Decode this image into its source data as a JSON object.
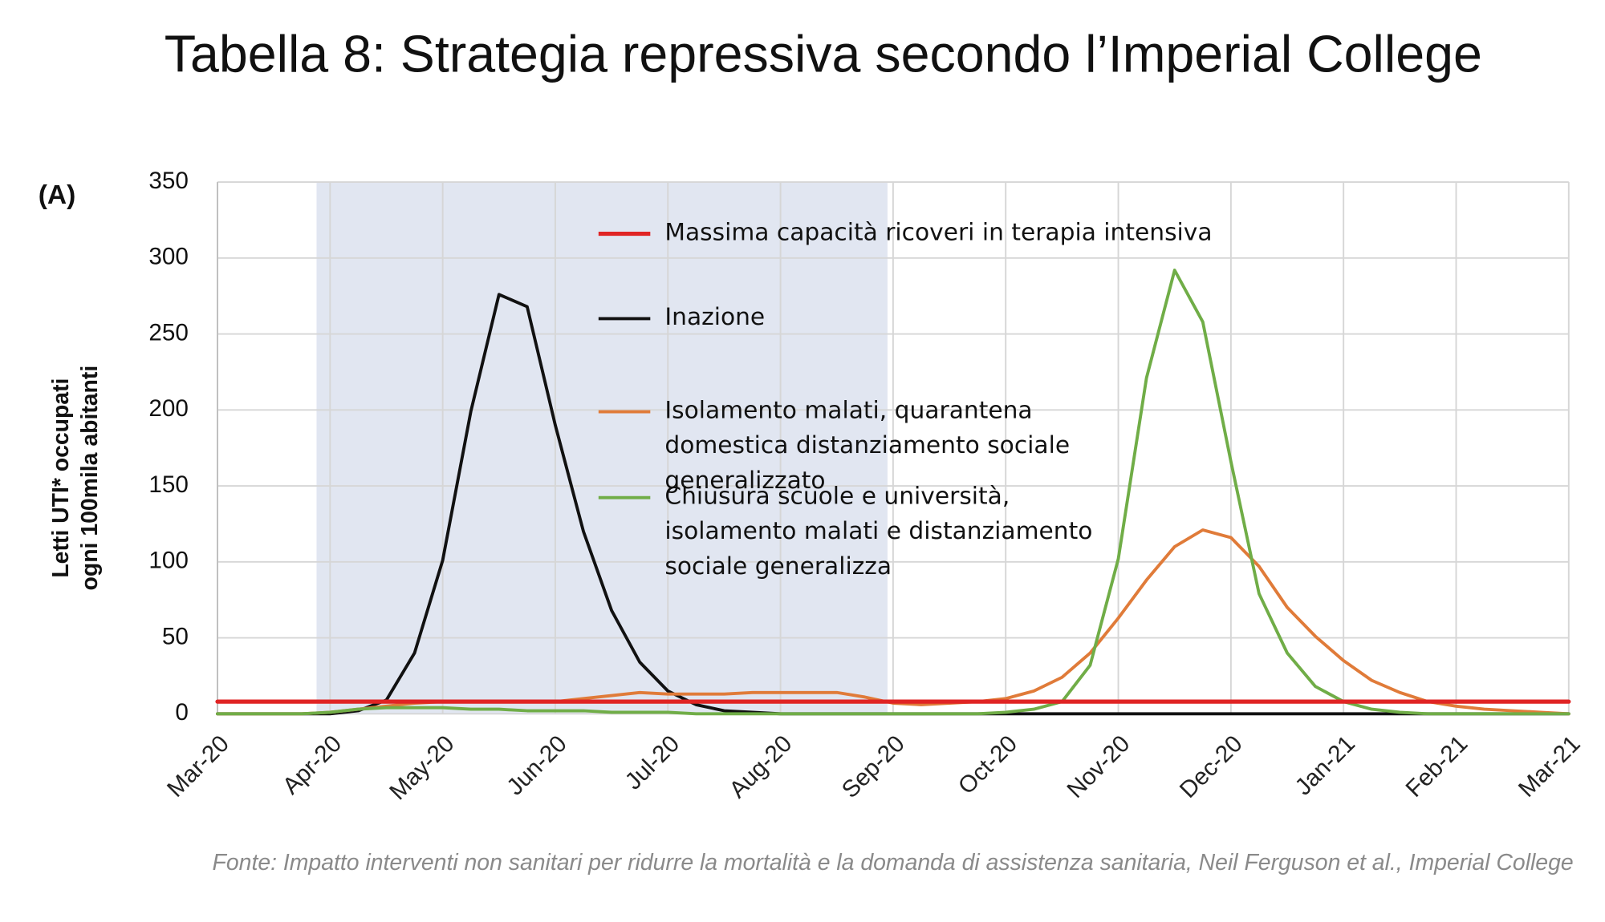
{
  "chart_data": {
    "type": "line",
    "title": "Tabella 8: Strategia repressiva secondo l’Imperial College",
    "panel_label": "(A)",
    "ylabel": [
      "Letti UTI* occupati",
      "ogni 100mila abitanti"
    ],
    "source": "Fonte: Impatto interventi non sanitari per ridurre la mortalità e la domanda di assistenza sanitaria, Neil Ferguson et al., Imperial College",
    "xlim": [
      0,
      12
    ],
    "xticks": [
      {
        "value": 0,
        "label": "Mar-20"
      },
      {
        "value": 1,
        "label": "Apr-20"
      },
      {
        "value": 2,
        "label": "May-20"
      },
      {
        "value": 3,
        "label": "Jun-20"
      },
      {
        "value": 4,
        "label": "Jul-20"
      },
      {
        "value": 5,
        "label": "Aug-20"
      },
      {
        "value": 6,
        "label": "Sep-20"
      },
      {
        "value": 7,
        "label": "Oct-20"
      },
      {
        "value": 8,
        "label": "Nov-20"
      },
      {
        "value": 9,
        "label": "Dec-20"
      },
      {
        "value": 10,
        "label": "Jan-21"
      },
      {
        "value": 11,
        "label": "Feb-21"
      },
      {
        "value": 12,
        "label": "Mar-21"
      }
    ],
    "ylim": [
      0,
      350
    ],
    "yticks": [
      0,
      50,
      100,
      150,
      200,
      250,
      300,
      350
    ],
    "grid": true,
    "shaded_x": [
      0.88,
      5.95
    ],
    "shade_color": "#e1e6f1",
    "x": [
      0,
      0.25,
      0.5,
      0.75,
      1,
      1.25,
      1.5,
      1.75,
      2,
      2.25,
      2.5,
      2.75,
      3,
      3.25,
      3.5,
      3.75,
      4,
      4.25,
      4.5,
      4.75,
      5,
      5.25,
      5.5,
      5.75,
      6,
      6.25,
      6.5,
      6.75,
      7,
      7.25,
      7.5,
      7.75,
      8,
      8.25,
      8.5,
      8.75,
      9,
      9.25,
      9.5,
      9.75,
      10,
      10.25,
      10.5,
      10.75,
      11,
      11.25,
      11.5,
      11.75,
      12
    ],
    "series": [
      {
        "name": "Massima capacità ricoveri in terapia intensiva",
        "color": "#e02424",
        "x": [
          0,
          12
        ],
        "values": [
          8,
          8
        ]
      },
      {
        "name": "Inazione",
        "color": "#111111",
        "values": [
          0,
          0,
          0,
          0,
          0,
          2,
          9,
          40,
          101,
          199,
          276,
          268,
          190,
          120,
          68,
          34,
          15,
          6,
          2,
          1,
          0,
          0,
          0,
          0,
          0,
          0,
          0,
          0,
          0,
          0,
          0,
          0,
          0,
          0,
          0,
          0,
          0,
          0,
          0,
          0,
          0,
          0,
          0,
          0,
          0,
          0,
          0,
          0,
          0
        ]
      },
      {
        "name": "Isolamento malati, quarantena domestica distanziamento sociale generalizzato",
        "color": "#e07b39",
        "values": [
          0,
          0,
          0,
          0,
          1,
          3,
          5,
          7,
          8,
          8,
          8,
          8,
          8,
          10,
          12,
          14,
          13,
          13,
          13,
          14,
          14,
          14,
          14,
          11,
          7,
          6,
          7,
          8,
          10,
          15,
          24,
          40,
          63,
          88,
          110,
          121,
          116,
          97,
          70,
          51,
          35,
          22,
          14,
          8,
          5,
          3,
          2,
          1,
          0
        ]
      },
      {
        "name": "Chiusura scuole e università, isolamento malati e distanziamento sociale generalizza",
        "color": "#70ad47",
        "values": [
          0,
          0,
          0,
          0,
          1,
          3,
          4,
          4,
          4,
          3,
          3,
          2,
          2,
          2,
          1,
          1,
          1,
          0,
          0,
          0,
          0,
          0,
          0,
          0,
          0,
          0,
          0,
          0,
          1,
          3,
          8,
          32,
          102,
          221,
          292,
          258,
          166,
          79,
          40,
          18,
          8,
          3,
          1,
          0,
          0,
          0,
          0,
          0,
          0
        ]
      }
    ]
  }
}
